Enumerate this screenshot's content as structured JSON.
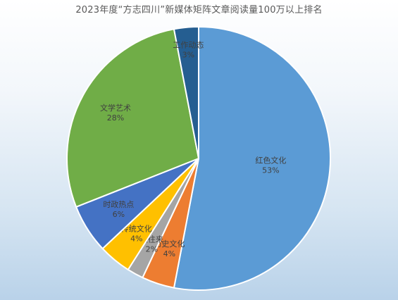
{
  "chart_data": {
    "type": "pie",
    "title": "2023年度“方志四川”新媒体矩阵文章阅读量100万以上排名",
    "slices": [
      {
        "label": "红色文化",
        "value": 53,
        "display": "53%",
        "color": "#5b9bd5"
      },
      {
        "label": "历史文化",
        "value": 4,
        "display": "4%",
        "color": "#ed7d31"
      },
      {
        "label": "读往来",
        "value": 2,
        "display": "2%",
        "color": "#a5a5a5"
      },
      {
        "label": "传统文化",
        "value": 4,
        "display": "4%",
        "color": "#ffc000"
      },
      {
        "label": "时政热点",
        "value": 6,
        "display": "6%",
        "color": "#4472c4"
      },
      {
        "label": "文学艺术",
        "value": 28,
        "display": "28%",
        "color": "#70ad47"
      },
      {
        "label": "工作动态",
        "value": 3,
        "display": "3%",
        "color": "#255e91"
      }
    ]
  }
}
